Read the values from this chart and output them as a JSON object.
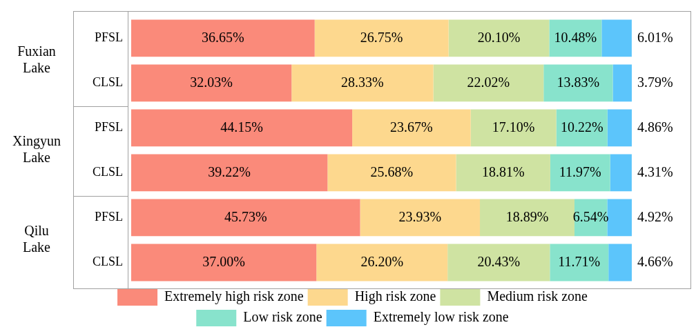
{
  "chart_data": {
    "type": "bar",
    "orientation": "horizontal",
    "stacked": true,
    "legend": "bottom",
    "tick_labels": "y",
    "categories": [
      "PFSL",
      "CLSL",
      "PFSL",
      "CLSL",
      "PFSL",
      "CLSL"
    ],
    "xlim": [
      0,
      100
    ],
    "annotations": [
      "Fuxian Lake",
      "Xingyun Lake",
      "Qilu Lake"
    ],
    "series": [
      {
        "name": "Extremely high risk zone",
        "color": "#fa8a7a",
        "values": [
          36.65,
          32.03,
          44.15,
          39.22,
          45.73,
          37.0
        ],
        "value_labels": [
          "36.65%",
          "32.03%",
          "44.15%",
          "39.22%",
          "45.73%",
          "37.00%"
        ]
      },
      {
        "name": "High risk zone",
        "color": "#fdd88e",
        "values": [
          26.75,
          28.33,
          23.67,
          25.68,
          23.93,
          26.2
        ],
        "value_labels": [
          "26.75%",
          "28.33%",
          "23.67%",
          "25.68%",
          "23.93%",
          "26.20%"
        ]
      },
      {
        "name": "Medium risk zone",
        "color": "#cfe3a2",
        "values": [
          20.1,
          22.02,
          17.1,
          18.81,
          18.89,
          20.43
        ],
        "value_labels": [
          "20.10%",
          "22.02%",
          "17.10%",
          "18.81%",
          "18.89%",
          "20.43%"
        ]
      },
      {
        "name": "Low risk zone",
        "color": "#88e3cc",
        "values": [
          10.48,
          13.83,
          10.22,
          11.97,
          6.54,
          11.71
        ],
        "value_labels": [
          "10.48%",
          "13.83%",
          "10.22%",
          "11.97%",
          "6.54%",
          "11.71%"
        ]
      },
      {
        "name": "Extremely low risk zone",
        "color": "#5cc5fb",
        "values": [
          6.01,
          3.79,
          4.86,
          4.31,
          4.92,
          4.66
        ],
        "value_labels": [
          "6.01%",
          "3.79%",
          "4.86%",
          "4.31%",
          "4.92%",
          "4.66%"
        ]
      }
    ]
  }
}
